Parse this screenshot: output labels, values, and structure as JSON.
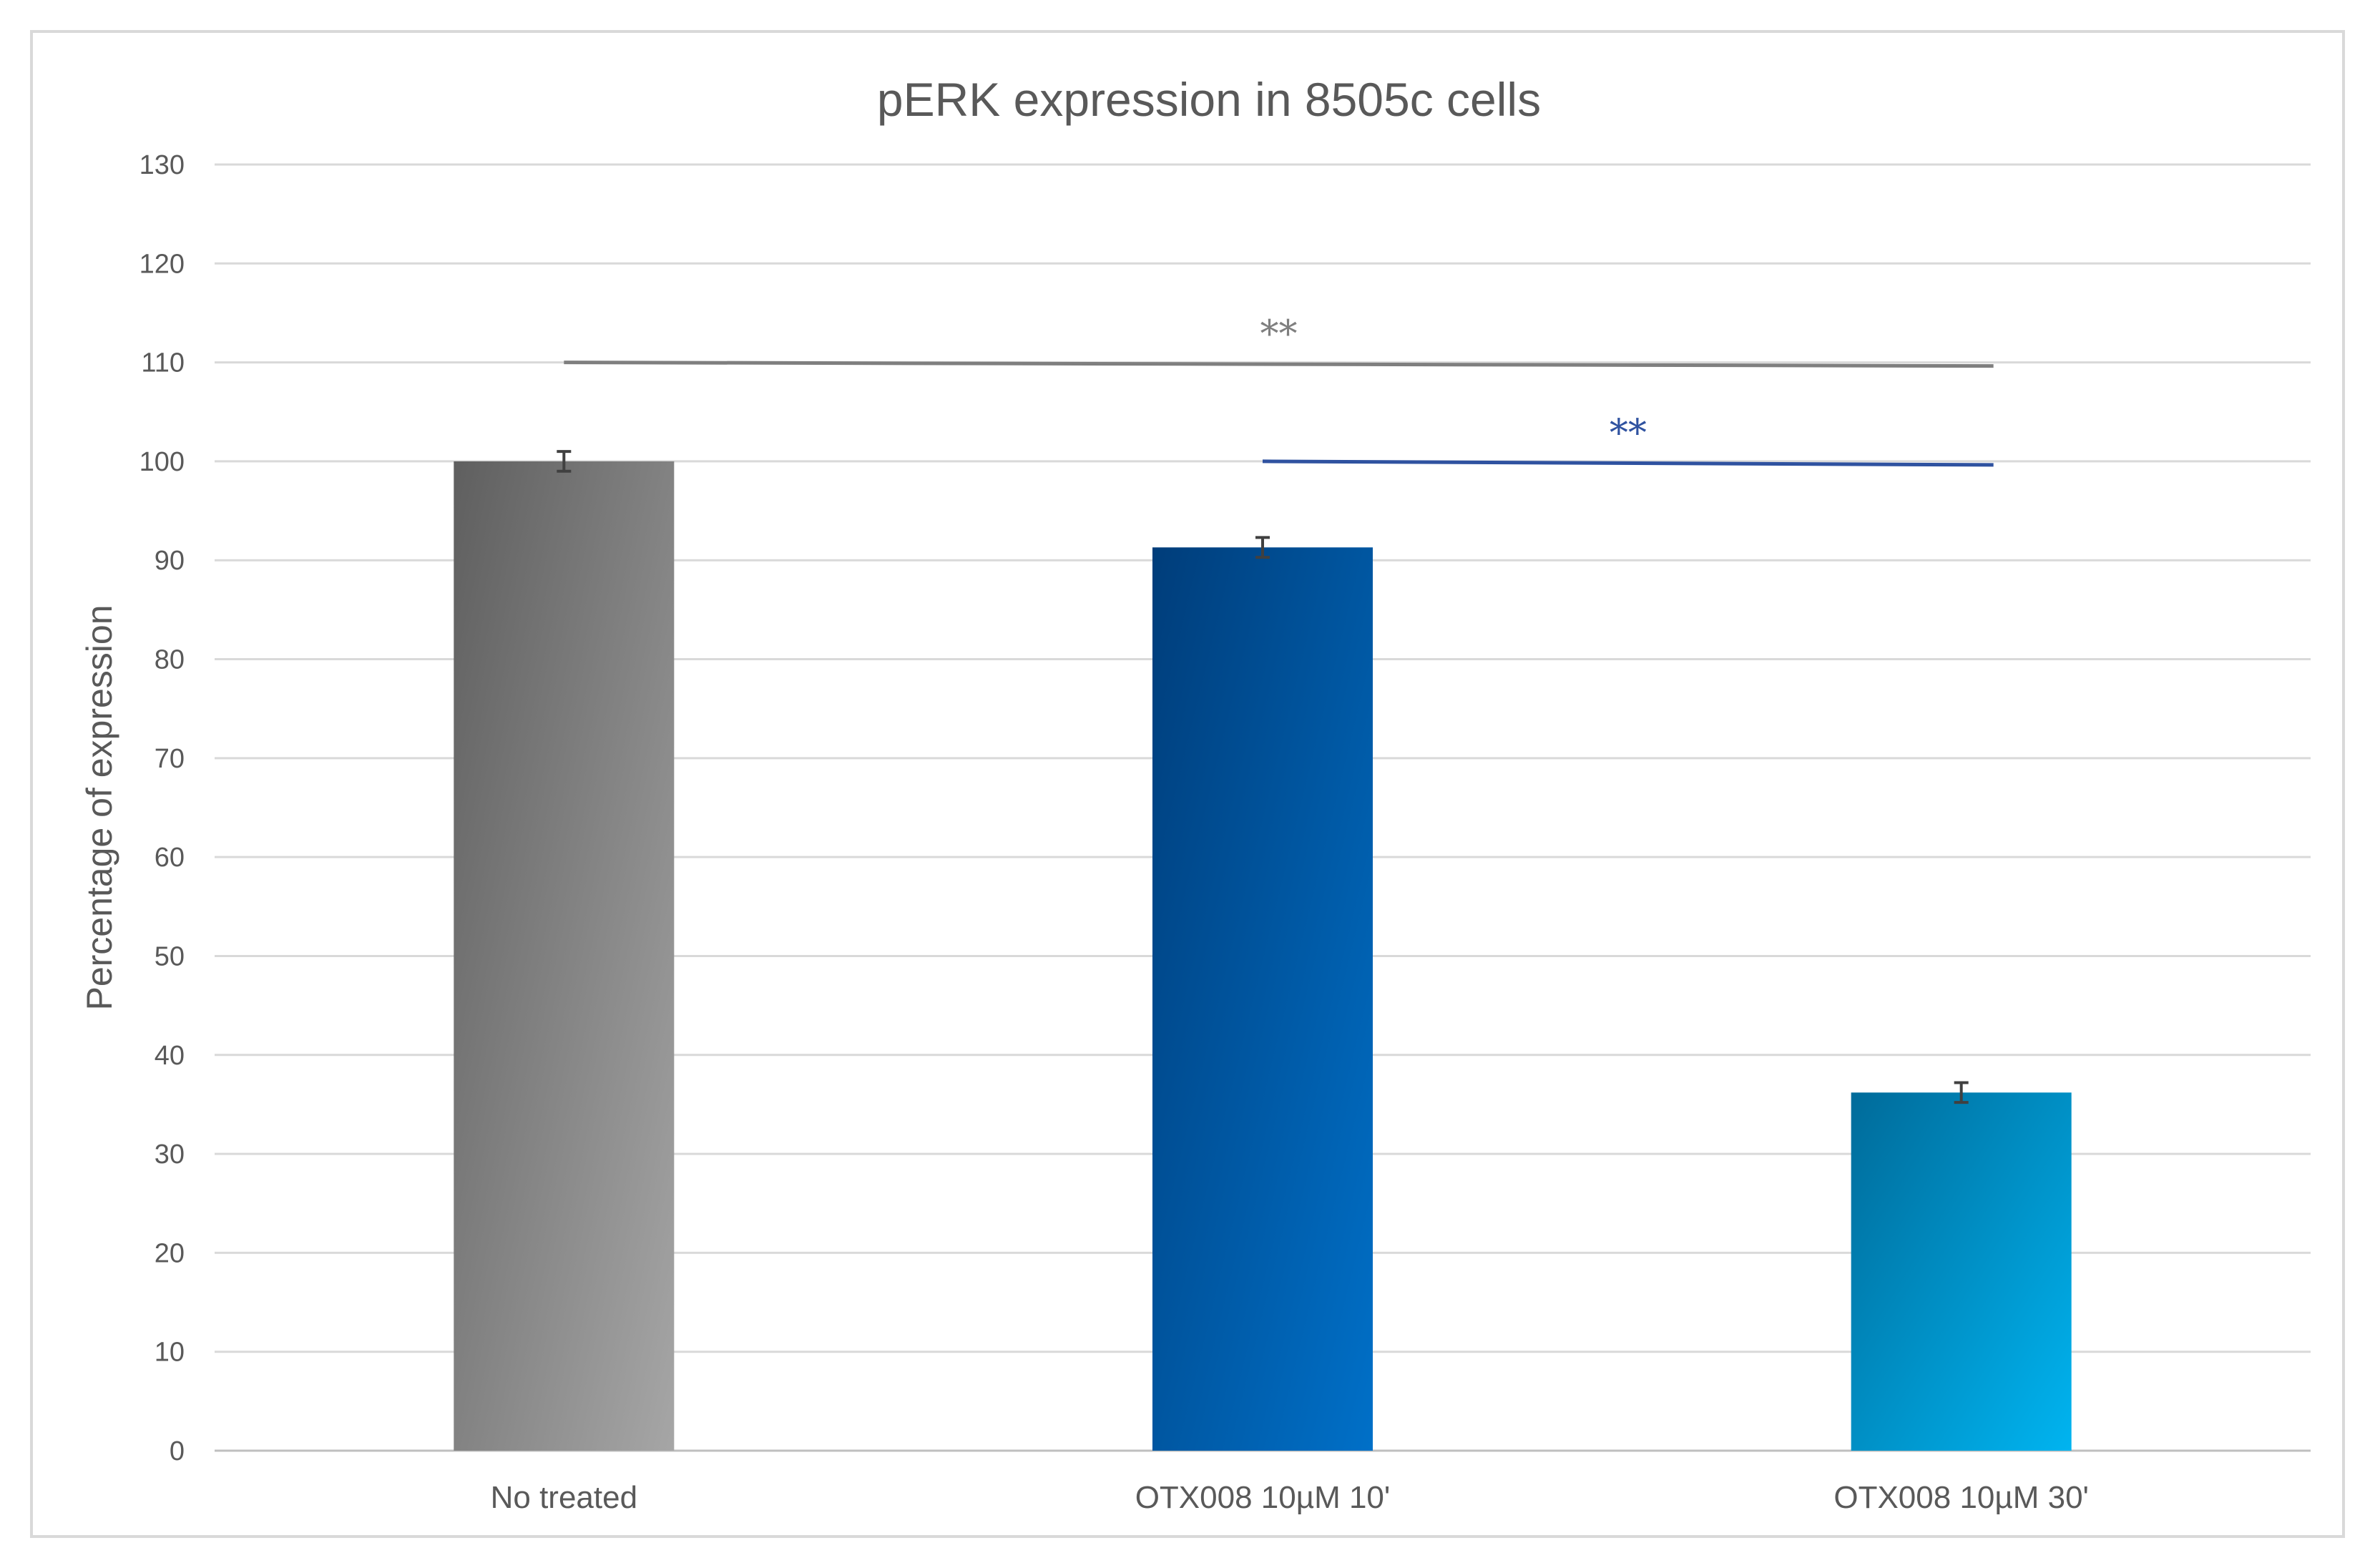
{
  "chart_data": {
    "type": "bar",
    "title": "pERK expression in 8505c cells",
    "xlabel": "",
    "ylabel": "Percentage of expression",
    "ylim": [
      0,
      130
    ],
    "yticks": [
      0,
      10,
      20,
      30,
      40,
      50,
      60,
      70,
      80,
      90,
      100,
      110,
      120,
      130
    ],
    "grid": true,
    "legend": "none",
    "categories": [
      "No treated",
      "OTX008 10µM 10'",
      "OTX008 10µM 30'"
    ],
    "values": [
      100,
      91.3,
      36.2
    ],
    "error": [
      1.0,
      1.0,
      1.0
    ],
    "bar_colors": [
      {
        "start": "#5f5f5f",
        "end": "#a6a6a6"
      },
      {
        "start": "#003d7a",
        "end": "#0070c8"
      },
      {
        "start": "#006b9a",
        "end": "#00b4f0"
      }
    ],
    "annotations": [
      {
        "text": "**",
        "from": 0,
        "to": 2,
        "y": 110,
        "color": "#7f7f7f"
      },
      {
        "text": "**",
        "from": 1,
        "to": 2,
        "y": 100,
        "color": "#2f52a0"
      }
    ]
  }
}
